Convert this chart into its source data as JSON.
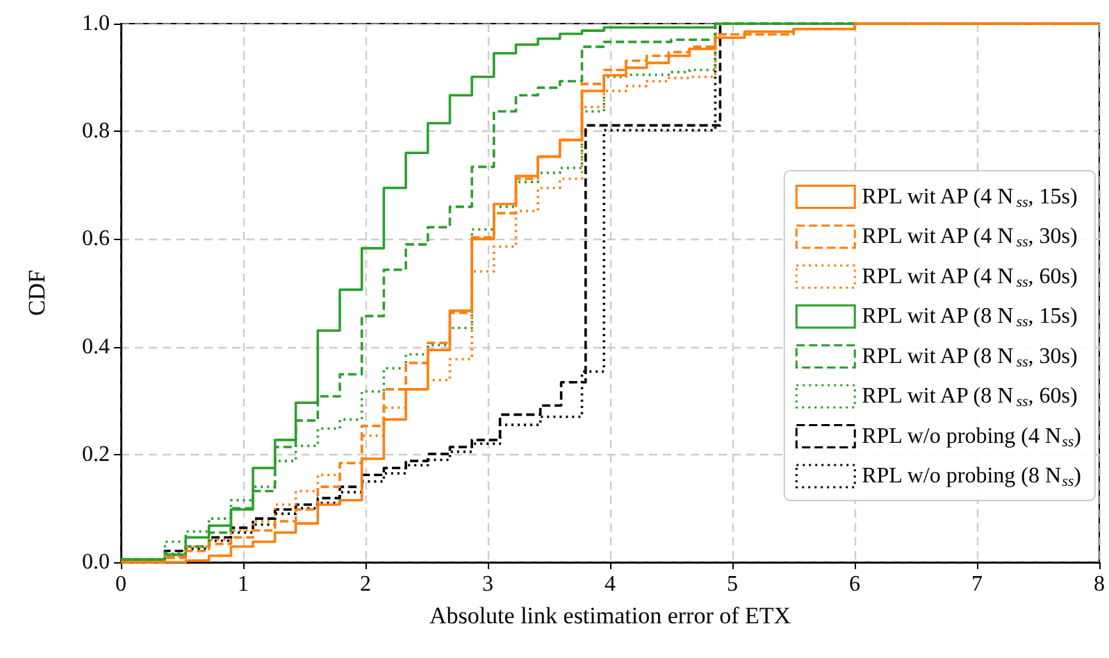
{
  "chart_data": {
    "type": "step",
    "xlabel": "Absolute link estimation error of ETX",
    "ylabel": "CDF",
    "xlim": [
      0,
      8
    ],
    "xticks": [
      0,
      1,
      2,
      3,
      4,
      5,
      6,
      7,
      8
    ],
    "ylim": [
      0,
      1
    ],
    "yticks": [
      {
        "value": 0,
        "label": "0.0"
      },
      0.2,
      0.4,
      0.6,
      0.8,
      {
        "value": 1,
        "label": "1.0"
      }
    ],
    "grid": true,
    "legend": "right",
    "series": [
      {
        "name": "RPL wit AP (4 N$_{ss}$, 15s)",
        "color": "#ff7f0e",
        "line_style": "solid",
        "x": [
          0,
          0.53,
          0.72,
          0.9,
          1.08,
          1.26,
          1.43,
          1.61,
          1.79,
          1.97,
          2.15,
          2.33,
          2.51,
          2.69,
          2.87,
          3.05,
          3.23,
          3.41,
          3.59,
          3.77,
          3.95,
          4.13,
          4.3,
          4.48,
          4.65,
          4.86,
          5.1,
          5.5,
          6,
          8
        ],
        "values": [
          0,
          0.003,
          0.012,
          0.029,
          0.038,
          0.055,
          0.072,
          0.107,
          0.115,
          0.192,
          0.265,
          0.321,
          0.394,
          0.467,
          0.6,
          0.665,
          0.717,
          0.753,
          0.784,
          0.875,
          0.904,
          0.918,
          0.927,
          0.94,
          0.953,
          0.974,
          0.985,
          0.99,
          1,
          1
        ]
      },
      {
        "name": "RPL wit AP (4 N$_{ss}$, 30s)",
        "color": "#ff7f0e",
        "line_style": "dashed",
        "x": [
          0,
          0.36,
          0.53,
          0.72,
          0.9,
          1.08,
          1.26,
          1.43,
          1.61,
          1.79,
          1.97,
          2.15,
          2.33,
          2.51,
          2.69,
          2.87,
          3.05,
          3.23,
          3.41,
          3.59,
          3.77,
          3.95,
          4.13,
          4.3,
          4.48,
          4.65,
          4.86,
          5.5,
          6,
          8
        ],
        "values": [
          0,
          0.008,
          0.021,
          0.034,
          0.046,
          0.059,
          0.076,
          0.098,
          0.14,
          0.184,
          0.253,
          0.321,
          0.37,
          0.407,
          0.463,
          0.603,
          0.648,
          0.712,
          0.753,
          0.784,
          0.888,
          0.914,
          0.931,
          0.94,
          0.947,
          0.957,
          0.98,
          0.99,
          1,
          1
        ]
      },
      {
        "name": "RPL wit AP (4 N$_{ss}$, 60s)",
        "color": "#ff7f0e",
        "line_style": "dotted",
        "x": [
          0,
          0.36,
          0.53,
          0.72,
          0.9,
          1.08,
          1.26,
          1.43,
          1.61,
          1.79,
          1.97,
          2.15,
          2.33,
          2.51,
          2.69,
          2.87,
          3.05,
          3.23,
          3.41,
          3.59,
          3.77,
          3.95,
          4.13,
          4.3,
          4.48,
          4.65,
          4.86,
          5.5,
          6,
          8
        ],
        "values": [
          0,
          0.012,
          0.029,
          0.042,
          0.059,
          0.076,
          0.107,
          0.132,
          0.162,
          0.184,
          0.235,
          0.287,
          0.321,
          0.338,
          0.377,
          0.54,
          0.586,
          0.652,
          0.695,
          0.712,
          0.845,
          0.875,
          0.884,
          0.893,
          0.899,
          0.901,
          0.98,
          0.99,
          1,
          1
        ]
      },
      {
        "name": "RPL wit AP (8 N$_{ss}$, 15s)",
        "color": "#2ca02c",
        "line_style": "solid",
        "x": [
          0,
          0.36,
          0.53,
          0.72,
          0.9,
          1.08,
          1.26,
          1.43,
          1.61,
          1.79,
          1.97,
          2.15,
          2.33,
          2.51,
          2.69,
          2.87,
          3.05,
          3.23,
          3.41,
          3.59,
          3.77,
          3.95,
          4.86,
          8
        ],
        "values": [
          0.005,
          0.014,
          0.046,
          0.068,
          0.098,
          0.175,
          0.227,
          0.296,
          0.43,
          0.506,
          0.583,
          0.695,
          0.76,
          0.815,
          0.867,
          0.901,
          0.945,
          0.961,
          0.972,
          0.981,
          0.987,
          0.993,
          1,
          1
        ]
      },
      {
        "name": "RPL wit AP (8 N$_{ss}$, 30s)",
        "color": "#2ca02c",
        "line_style": "dashed",
        "x": [
          0,
          0.36,
          0.53,
          0.72,
          0.9,
          1.08,
          1.26,
          1.43,
          1.61,
          1.79,
          1.97,
          2.15,
          2.33,
          2.51,
          2.69,
          2.87,
          3.05,
          3.23,
          3.41,
          3.59,
          3.77,
          3.95,
          4.5,
          4.86,
          8
        ],
        "values": [
          0.005,
          0.013,
          0.029,
          0.055,
          0.1,
          0.132,
          0.214,
          0.263,
          0.308,
          0.349,
          0.457,
          0.543,
          0.59,
          0.622,
          0.66,
          0.734,
          0.837,
          0.867,
          0.881,
          0.893,
          0.957,
          0.966,
          0.97,
          1,
          1
        ]
      },
      {
        "name": "RPL wit AP (8 N$_{ss}$, 60s)",
        "color": "#2ca02c",
        "line_style": "dotted",
        "x": [
          0,
          0.36,
          0.53,
          0.72,
          0.9,
          1.08,
          1.26,
          1.43,
          1.61,
          1.79,
          1.97,
          2.15,
          2.33,
          2.51,
          2.69,
          2.87,
          3.05,
          3.23,
          3.41,
          3.59,
          3.77,
          3.95,
          4.13,
          4.48,
          4.65,
          4.86,
          8
        ],
        "values": [
          0.005,
          0.038,
          0.057,
          0.081,
          0.115,
          0.14,
          0.188,
          0.216,
          0.248,
          0.265,
          0.317,
          0.36,
          0.386,
          0.403,
          0.435,
          0.618,
          0.66,
          0.706,
          0.723,
          0.732,
          0.837,
          0.901,
          0.905,
          0.91,
          0.914,
          1,
          1
        ]
      },
      {
        "name": "RPL w/o probing (4 N$_{ss}$)",
        "color": "#000000",
        "line_style": "dashed",
        "x": [
          0,
          0.36,
          0.53,
          0.72,
          0.9,
          1.08,
          1.26,
          1.43,
          1.61,
          1.79,
          1.97,
          2.15,
          2.33,
          2.51,
          2.69,
          2.87,
          3.1,
          3.43,
          3.6,
          3.8,
          4.9,
          8
        ],
        "values": [
          0.005,
          0.021,
          0.029,
          0.046,
          0.064,
          0.081,
          0.098,
          0.107,
          0.119,
          0.14,
          0.162,
          0.175,
          0.188,
          0.201,
          0.214,
          0.227,
          0.274,
          0.291,
          0.334,
          0.811,
          1,
          1
        ]
      },
      {
        "name": "RPL w/o probing (8 N$_{ss}$)",
        "color": "#000000",
        "line_style": "dotted",
        "x": [
          0,
          0.36,
          0.53,
          0.72,
          0.9,
          1.08,
          1.26,
          1.43,
          1.61,
          1.79,
          1.97,
          2.15,
          2.33,
          2.51,
          2.69,
          2.87,
          3.1,
          3.43,
          3.77,
          3.95,
          4.86,
          8
        ],
        "values": [
          0.005,
          0.015,
          0.025,
          0.04,
          0.055,
          0.07,
          0.09,
          0.1,
          0.11,
          0.13,
          0.15,
          0.165,
          0.18,
          0.19,
          0.205,
          0.22,
          0.255,
          0.27,
          0.354,
          0.802,
          1,
          1
        ]
      }
    ]
  }
}
